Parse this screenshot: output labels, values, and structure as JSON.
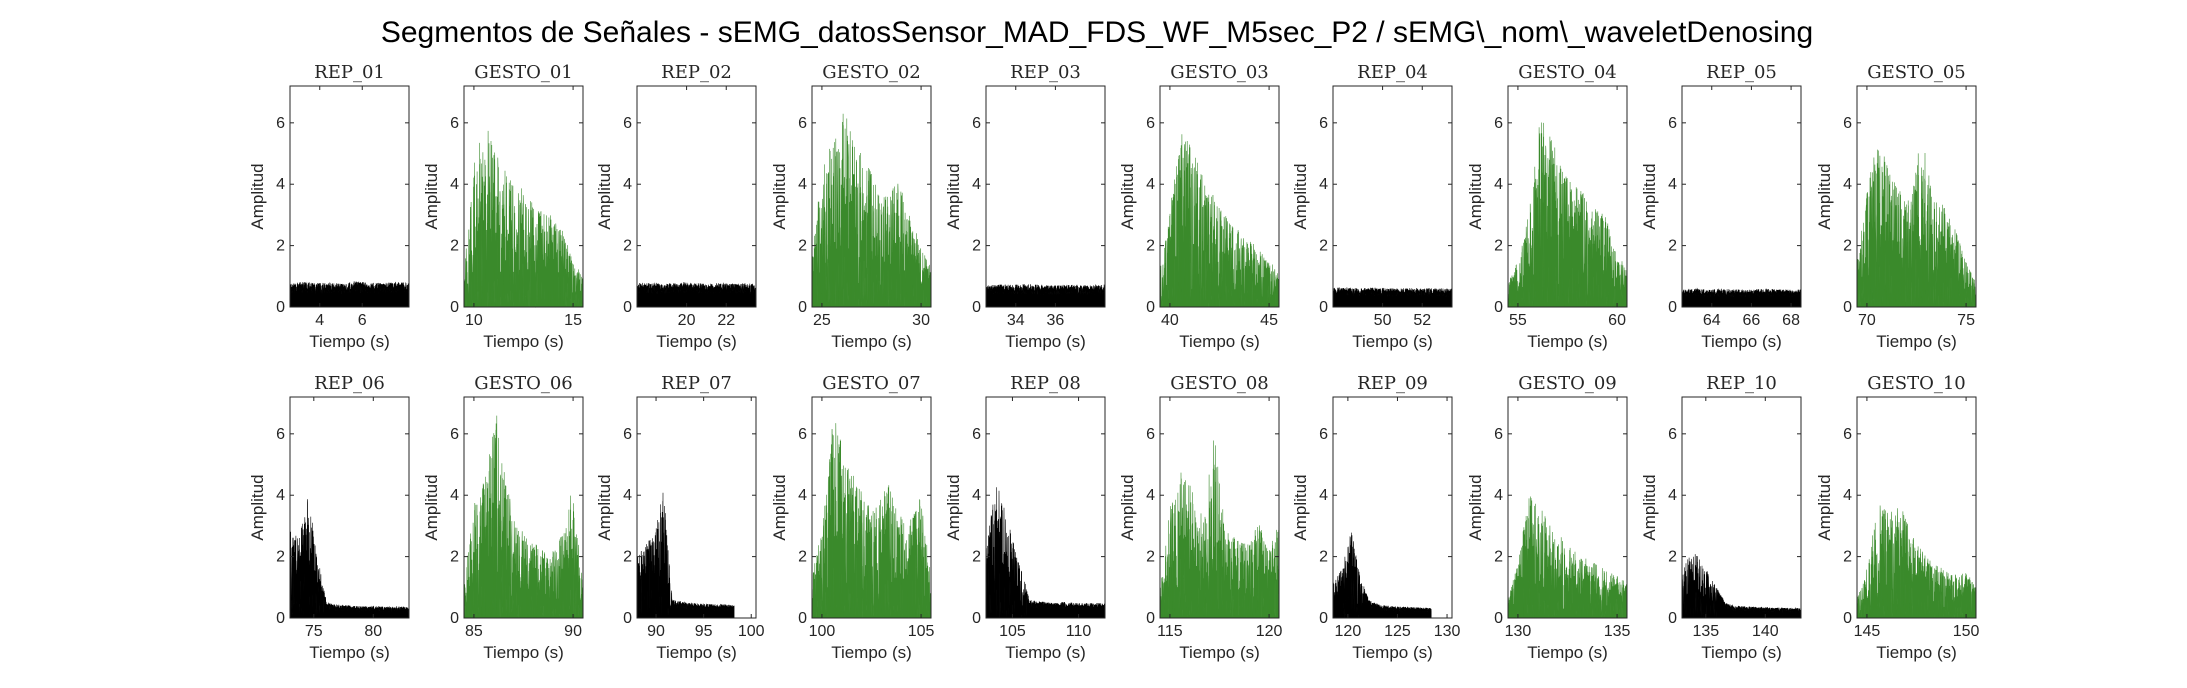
{
  "figure": {
    "suptitle": "Segmentos de Señales - sEMG_datosSensor_MAD_FDS_WF_M5sec_P2 / sEMG\\_nom\\_waveletDenosing"
  },
  "colors": {
    "rep": "#000000",
    "gesto": "#3a8a2b",
    "axis": "#262626"
  },
  "chart_data": [
    {
      "type": "area",
      "title": "REP_01",
      "xlabel": "Tiempo (s)",
      "ylabel": "Amplitud",
      "xlim": [
        2.6,
        8.2
      ],
      "ylim": [
        0,
        7.2
      ],
      "xticks": [
        4,
        6
      ],
      "yticks": [
        0,
        2,
        4,
        6
      ],
      "series": [
        {
          "name": "REP_01",
          "color": "rep",
          "x_range": [
            2.6,
            8.2
          ],
          "envelope": [
            0.75,
            0.82,
            0.78,
            0.8,
            0.76,
            0.85,
            0.8,
            0.78,
            0.82,
            0.79
          ]
        }
      ]
    },
    {
      "type": "area",
      "title": "GESTO_01",
      "xlabel": "Tiempo (s)",
      "ylabel": "Amplitud",
      "xlim": [
        9.5,
        15.5
      ],
      "ylim": [
        0,
        7.2
      ],
      "xticks": [
        10,
        15
      ],
      "yticks": [
        0,
        2,
        4,
        6
      ],
      "series": [
        {
          "name": "GESTO_01",
          "color": "gesto",
          "x_range": [
            9.5,
            15.5
          ],
          "envelope": [
            1.2,
            4.8,
            6.1,
            5.0,
            4.3,
            4.0,
            3.6,
            3.2,
            3.0,
            2.6,
            1.6,
            1.0
          ]
        }
      ]
    },
    {
      "type": "area",
      "title": "REP_02",
      "xlabel": "Tiempo (s)",
      "ylabel": "Amplitud",
      "xlim": [
        17.5,
        23.5
      ],
      "ylim": [
        0,
        7.2
      ],
      "xticks": [
        20,
        22
      ],
      "yticks": [
        0,
        2,
        4,
        6
      ],
      "series": [
        {
          "name": "REP_02",
          "color": "rep",
          "x_range": [
            17.5,
            23.5
          ],
          "envelope": [
            0.78,
            0.8,
            0.75,
            0.82,
            0.79,
            0.77,
            0.8,
            0.76,
            0.78,
            0.75
          ]
        }
      ]
    },
    {
      "type": "area",
      "title": "GESTO_02",
      "xlabel": "Tiempo (s)",
      "ylabel": "Amplitud",
      "xlim": [
        24.5,
        30.5
      ],
      "ylim": [
        0,
        7.2
      ],
      "xticks": [
        25,
        30
      ],
      "yticks": [
        0,
        2,
        4,
        6
      ],
      "series": [
        {
          "name": "GESTO_02",
          "color": "gesto",
          "x_range": [
            24.5,
            30.5
          ],
          "envelope": [
            2.0,
            4.5,
            5.6,
            6.4,
            5.3,
            4.8,
            4.0,
            3.6,
            4.2,
            3.0,
            2.1,
            1.4
          ]
        }
      ]
    },
    {
      "type": "area",
      "title": "REP_03",
      "xlabel": "Tiempo (s)",
      "ylabel": "Amplitud",
      "xlim": [
        32.5,
        38.5
      ],
      "ylim": [
        0,
        7.2
      ],
      "xticks": [
        34,
        36
      ],
      "yticks": [
        0,
        2,
        4,
        6
      ],
      "series": [
        {
          "name": "REP_03",
          "color": "rep",
          "x_range": [
            32.5,
            38.5
          ],
          "envelope": [
            0.7,
            0.74,
            0.72,
            0.75,
            0.73,
            0.7,
            0.74,
            0.72,
            0.71,
            0.73
          ]
        }
      ]
    },
    {
      "type": "area",
      "title": "GESTO_03",
      "xlabel": "Tiempo (s)",
      "ylabel": "Amplitud",
      "xlim": [
        39.5,
        45.5
      ],
      "ylim": [
        0,
        7.2
      ],
      "xticks": [
        40,
        45
      ],
      "yticks": [
        0,
        2,
        4,
        6
      ],
      "series": [
        {
          "name": "GESTO_03",
          "color": "gesto",
          "x_range": [
            39.5,
            45.5
          ],
          "envelope": [
            1.2,
            3.5,
            5.7,
            5.2,
            4.2,
            3.6,
            3.0,
            2.6,
            2.2,
            2.0,
            1.6,
            1.1
          ]
        }
      ]
    },
    {
      "type": "area",
      "title": "REP_04",
      "xlabel": "Tiempo (s)",
      "ylabel": "Amplitud",
      "xlim": [
        47.5,
        53.5
      ],
      "ylim": [
        0,
        7.2
      ],
      "xticks": [
        50,
        52
      ],
      "yticks": [
        0,
        2,
        4,
        6
      ],
      "series": [
        {
          "name": "REP_04",
          "color": "rep",
          "x_range": [
            47.5,
            53.5
          ],
          "envelope": [
            0.62,
            0.65,
            0.6,
            0.64,
            0.62,
            0.6,
            0.63,
            0.61,
            0.62,
            0.6
          ]
        }
      ]
    },
    {
      "type": "area",
      "title": "GESTO_04",
      "xlabel": "Tiempo (s)",
      "ylabel": "Amplitud",
      "xlim": [
        54.5,
        60.5
      ],
      "ylim": [
        0,
        7.2
      ],
      "xticks": [
        55,
        60
      ],
      "yticks": [
        0,
        2,
        4,
        6
      ],
      "series": [
        {
          "name": "GESTO_04",
          "color": "gesto",
          "x_range": [
            54.5,
            60.5
          ],
          "envelope": [
            0.8,
            1.6,
            3.2,
            6.3,
            5.5,
            4.6,
            4.0,
            3.8,
            3.2,
            3.0,
            2.0,
            1.2
          ]
        }
      ]
    },
    {
      "type": "area",
      "title": "REP_05",
      "xlabel": "Tiempo (s)",
      "ylabel": "Amplitud",
      "xlim": [
        62.5,
        68.5
      ],
      "ylim": [
        0,
        7.2
      ],
      "xticks": [
        64,
        66,
        68
      ],
      "yticks": [
        0,
        2,
        4,
        6
      ],
      "series": [
        {
          "name": "REP_05",
          "color": "rep",
          "x_range": [
            62.5,
            68.5
          ],
          "envelope": [
            0.58,
            0.6,
            0.57,
            0.6,
            0.58,
            0.56,
            0.6,
            0.58,
            0.57,
            0.58
          ]
        }
      ]
    },
    {
      "type": "area",
      "title": "GESTO_05",
      "xlabel": "Tiempo (s)",
      "ylabel": "Amplitud",
      "xlim": [
        69.5,
        75.5
      ],
      "ylim": [
        0,
        7.2
      ],
      "xticks": [
        70,
        75
      ],
      "yticks": [
        0,
        2,
        4,
        6
      ],
      "series": [
        {
          "name": "GESTO_05",
          "color": "gesto",
          "x_range": [
            69.5,
            75.5
          ],
          "envelope": [
            1.6,
            4.0,
            5.6,
            4.4,
            3.8,
            3.5,
            5.8,
            3.6,
            3.4,
            2.6,
            1.6,
            0.8
          ]
        }
      ]
    },
    {
      "type": "area",
      "title": "REP_06",
      "xlabel": "Tiempo (s)",
      "ylabel": "Amplitud",
      "xlim": [
        73,
        83
      ],
      "ylim": [
        0,
        7.2
      ],
      "xticks": [
        75,
        80
      ],
      "yticks": [
        0,
        2,
        4,
        6
      ],
      "series": [
        {
          "name": "REP_06",
          "color": "rep",
          "x_range": [
            73,
            83
          ],
          "envelope": [
            2.9,
            2.6,
            4.1,
            2.0,
            0.5,
            0.45,
            0.42,
            0.4,
            0.38,
            0.4,
            0.38,
            0.36,
            0.38,
            0.35
          ]
        }
      ]
    },
    {
      "type": "area",
      "title": "GESTO_06",
      "xlabel": "Tiempo (s)",
      "ylabel": "Amplitud",
      "xlim": [
        84.5,
        90.5
      ],
      "ylim": [
        0,
        7.2
      ],
      "xticks": [
        85,
        90
      ],
      "yticks": [
        0,
        2,
        4,
        6
      ],
      "series": [
        {
          "name": "GESTO_06",
          "color": "gesto",
          "x_range": [
            84.5,
            90.5
          ],
          "envelope": [
            1.4,
            3.8,
            4.6,
            6.8,
            4.2,
            3.0,
            2.6,
            2.3,
            2.0,
            2.8,
            4.2,
            1.2
          ]
        }
      ]
    },
    {
      "type": "area",
      "title": "REP_07",
      "xlabel": "Tiempo (s)",
      "ylabel": "Amplitud",
      "xlim": [
        88,
        100.5
      ],
      "ylim": [
        0,
        7.2
      ],
      "xticks": [
        90,
        95,
        100
      ],
      "yticks": [
        0,
        2,
        4,
        6
      ],
      "series": [
        {
          "name": "REP_07",
          "color": "rep",
          "x_range": [
            88,
            98.2
          ],
          "envelope": [
            2.0,
            2.4,
            2.8,
            4.2,
            0.6,
            0.55,
            0.5,
            0.48,
            0.46,
            0.45,
            0.44,
            0.42
          ]
        }
      ]
    },
    {
      "type": "area",
      "title": "GESTO_07",
      "xlabel": "Tiempo (s)",
      "ylabel": "Amplitud",
      "xlim": [
        99.5,
        105.5
      ],
      "ylim": [
        0,
        7.2
      ],
      "xticks": [
        100,
        105
      ],
      "yticks": [
        0,
        2,
        4,
        6
      ],
      "series": [
        {
          "name": "GESTO_07",
          "color": "gesto",
          "x_range": [
            99.5,
            105.5
          ],
          "envelope": [
            1.4,
            3.0,
            6.9,
            5.2,
            4.6,
            3.8,
            3.6,
            4.5,
            3.4,
            3.1,
            4.0,
            1.6
          ]
        }
      ]
    },
    {
      "type": "area",
      "title": "REP_08",
      "xlabel": "Tiempo (s)",
      "ylabel": "Amplitud",
      "xlim": [
        103,
        112
      ],
      "ylim": [
        0,
        7.2
      ],
      "xticks": [
        105,
        110
      ],
      "yticks": [
        0,
        2,
        4,
        6
      ],
      "series": [
        {
          "name": "REP_08",
          "color": "rep",
          "x_range": [
            103,
            112
          ],
          "envelope": [
            2.6,
            4.4,
            3.2,
            2.0,
            0.6,
            0.55,
            0.5,
            0.52,
            0.5,
            0.48,
            0.5,
            0.48
          ]
        }
      ]
    },
    {
      "type": "area",
      "title": "GESTO_08",
      "xlabel": "Tiempo (s)",
      "ylabel": "Amplitud",
      "xlim": [
        114.5,
        120.5
      ],
      "ylim": [
        0,
        7.2
      ],
      "xticks": [
        115,
        120
      ],
      "yticks": [
        0,
        2,
        4,
        6
      ],
      "series": [
        {
          "name": "GESTO_08",
          "color": "gesto",
          "x_range": [
            114.5,
            120.5
          ],
          "envelope": [
            1.0,
            3.8,
            4.8,
            4.2,
            3.2,
            6.0,
            3.0,
            2.6,
            2.4,
            3.4,
            2.2,
            3.2
          ]
        }
      ]
    },
    {
      "type": "area",
      "title": "REP_09",
      "xlabel": "Tiempo (s)",
      "ylabel": "Amplitud",
      "xlim": [
        118.5,
        130.5
      ],
      "ylim": [
        0,
        7.2
      ],
      "xticks": [
        120,
        125,
        130
      ],
      "yticks": [
        0,
        2,
        4,
        6
      ],
      "series": [
        {
          "name": "REP_09",
          "color": "rep",
          "x_range": [
            118.5,
            128.4
          ],
          "envelope": [
            1.2,
            1.6,
            3.0,
            1.4,
            0.6,
            0.45,
            0.4,
            0.38,
            0.36,
            0.35,
            0.34,
            0.32
          ]
        }
      ]
    },
    {
      "type": "area",
      "title": "GESTO_09",
      "xlabel": "Tiempo (s)",
      "ylabel": "Amplitud",
      "xlim": [
        129.5,
        135.5
      ],
      "ylim": [
        0,
        7.2
      ],
      "xticks": [
        130,
        135
      ],
      "yticks": [
        0,
        2,
        4,
        6
      ],
      "series": [
        {
          "name": "GESTO_09",
          "color": "gesto",
          "x_range": [
            129.5,
            135.5
          ],
          "envelope": [
            0.6,
            2.0,
            4.1,
            3.6,
            3.0,
            2.6,
            2.2,
            2.0,
            1.8,
            1.6,
            1.4,
            1.2
          ]
        }
      ]
    },
    {
      "type": "area",
      "title": "REP_10",
      "xlabel": "Tiempo (s)",
      "ylabel": "Amplitud",
      "xlim": [
        133,
        143
      ],
      "ylim": [
        0,
        7.2
      ],
      "xticks": [
        135,
        140
      ],
      "yticks": [
        0,
        2,
        4,
        6
      ],
      "series": [
        {
          "name": "REP_10",
          "color": "rep",
          "x_range": [
            133,
            143
          ],
          "envelope": [
            1.6,
            2.2,
            1.8,
            1.2,
            0.5,
            0.4,
            0.38,
            0.36,
            0.35,
            0.34,
            0.33,
            0.32
          ]
        }
      ]
    },
    {
      "type": "area",
      "title": "GESTO_10",
      "xlabel": "Tiempo (s)",
      "ylabel": "Amplitud",
      "xlim": [
        144.5,
        150.5
      ],
      "ylim": [
        0,
        7.2
      ],
      "xticks": [
        145,
        150
      ],
      "yticks": [
        0,
        2,
        4,
        6
      ],
      "series": [
        {
          "name": "GESTO_10",
          "color": "gesto",
          "x_range": [
            144.5,
            150.5
          ],
          "envelope": [
            0.6,
            1.8,
            3.9,
            3.4,
            3.8,
            2.8,
            2.2,
            1.8,
            1.6,
            1.4,
            1.6,
            1.0
          ]
        }
      ]
    }
  ]
}
